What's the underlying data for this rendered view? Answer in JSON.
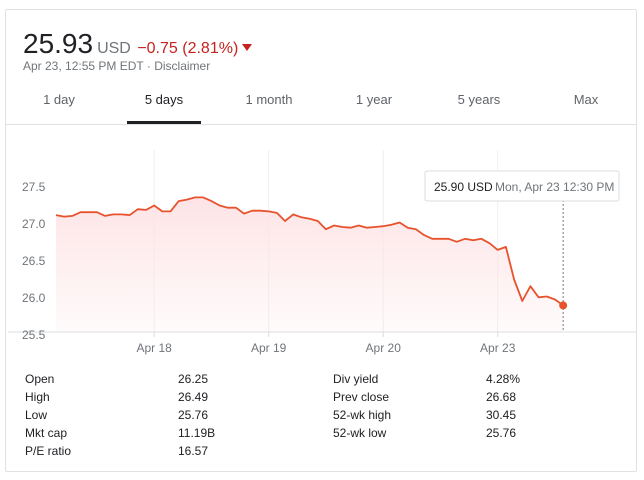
{
  "quote": {
    "price": "25.93",
    "currency": "USD",
    "change": "−0.75 (2.81%)",
    "change_color": "#c5221f",
    "arrow_icon": "arrow-down-icon",
    "timestamp": "Apr 23, 12:55 PM EDT",
    "separator": "·",
    "disclaimer": "Disclaimer"
  },
  "tabs": [
    {
      "label": "1 day",
      "active": false
    },
    {
      "label": "5 days",
      "active": true
    },
    {
      "label": "1 month",
      "active": false
    },
    {
      "label": "1 year",
      "active": false
    },
    {
      "label": "5 years",
      "active": false
    },
    {
      "label": "Max",
      "active": false
    }
  ],
  "chart_data": {
    "type": "area",
    "line_color": "#e8522d",
    "fill_color": "#fde4e6",
    "ylim": [
      25.5,
      27.6
    ],
    "y_ticks": [
      "25.5",
      "26.0",
      "26.5",
      "27.0",
      "27.5"
    ],
    "y_tick_values": [
      25.5,
      26.0,
      26.5,
      27.0,
      27.5
    ],
    "x_tick_labels": [
      "Apr 18",
      "Apr 19",
      "Apr 20",
      "Apr 23"
    ],
    "x_tick_index": [
      12,
      26,
      40,
      54
    ],
    "grid": "vertical-day-separators",
    "values": [
      27.12,
      27.1,
      27.11,
      27.16,
      27.16,
      27.16,
      27.11,
      27.13,
      27.13,
      27.12,
      27.2,
      27.19,
      27.25,
      27.17,
      27.17,
      27.31,
      27.33,
      27.36,
      27.36,
      27.31,
      27.25,
      27.22,
      27.22,
      27.14,
      27.18,
      27.18,
      27.17,
      27.15,
      27.04,
      27.13,
      27.09,
      27.07,
      27.04,
      26.93,
      26.98,
      26.96,
      26.95,
      26.98,
      26.95,
      26.96,
      26.97,
      26.99,
      27.02,
      26.95,
      26.93,
      26.85,
      26.8,
      26.8,
      26.8,
      26.76,
      26.8,
      26.78,
      26.8,
      26.74,
      26.65,
      26.69,
      26.25,
      25.96,
      26.16,
      26.01,
      26.02,
      25.98,
      25.9
    ],
    "tooltip": {
      "price": "25.90 USD",
      "time": "Mon, Apr 23 12:30 PM"
    }
  },
  "stats": {
    "left": [
      {
        "label": "Open",
        "value": "26.25"
      },
      {
        "label": "High",
        "value": "26.49"
      },
      {
        "label": "Low",
        "value": "25.76"
      },
      {
        "label": "Mkt cap",
        "value": "11.19B"
      },
      {
        "label": "P/E ratio",
        "value": "16.57"
      }
    ],
    "right": [
      {
        "label": "Div yield",
        "value": "4.28%"
      },
      {
        "label": "Prev close",
        "value": "26.68"
      },
      {
        "label": "52-wk high",
        "value": "30.45"
      },
      {
        "label": "52-wk low",
        "value": "25.76"
      }
    ]
  }
}
